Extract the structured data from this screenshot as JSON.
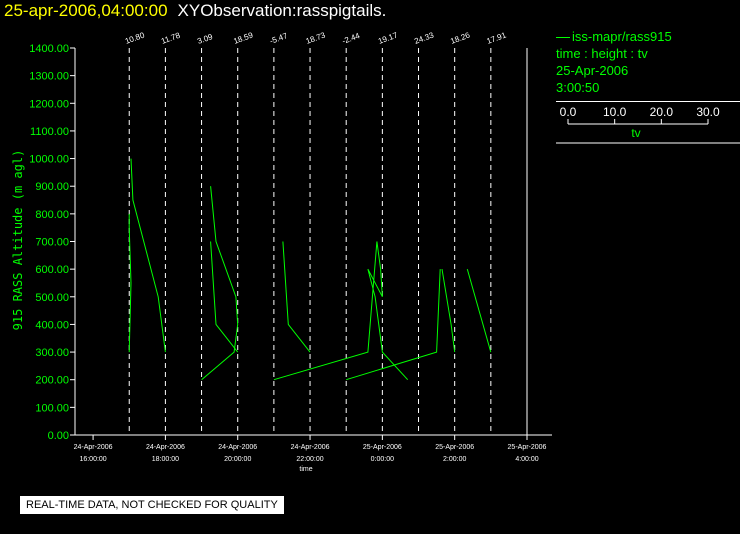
{
  "header": {
    "datetime": "25-apr-2006,04:00:00",
    "title": "XYObservation:rasspigtails."
  },
  "legend": {
    "series_label": "iss-mapr/rass915",
    "fields": "time : height : tv",
    "date": "25-Apr-2006",
    "time": "3:00:50",
    "scale_ticks": [
      "0.0",
      "10.0",
      "20.0",
      "30.0"
    ],
    "scale_label": "tv"
  },
  "disclaimer": "REAL-TIME DATA, NOT CHECKED FOR QUALITY",
  "colors": {
    "axis": "#ffffff",
    "series": "#00ff00",
    "title_date": "#ffff00"
  },
  "chart_data": {
    "type": "line",
    "ylabel": "915 RASS Altitude (m agl)",
    "xlabel": "time",
    "ylim": [
      0,
      1400
    ],
    "yticks": [
      "0.00",
      "100.00",
      "200.00",
      "300.00",
      "400.00",
      "500.00",
      "600.00",
      "700.00",
      "800.00",
      "900.00",
      "1000.00",
      "1100.00",
      "1200.00",
      "1300.00",
      "1400.00"
    ],
    "xticks": [
      {
        "date": "24-Apr-2006",
        "time": "16:00:00",
        "h": -12
      },
      {
        "date": "24-Apr-2006",
        "time": "18:00:00",
        "h": -10
      },
      {
        "date": "24-Apr-2006",
        "time": "20:00:00",
        "h": -8
      },
      {
        "date": "24-Apr-2006",
        "time": "22:00:00",
        "h": -6
      },
      {
        "date": "25-Apr-2006",
        "time": "0:00:00",
        "h": -4
      },
      {
        "date": "25-Apr-2006",
        "time": "2:00:00",
        "h": -2
      },
      {
        "date": "25-Apr-2006",
        "time": "4:00:00",
        "h": 0
      }
    ],
    "profiles": [
      {
        "label": "10.80",
        "h": -11
      },
      {
        "label": "11.78",
        "h": -10
      },
      {
        "label": "3.09",
        "h": -9
      },
      {
        "label": "18.59",
        "h": -8
      },
      {
        "label": "-5.47",
        "h": -7
      },
      {
        "label": "18.73",
        "h": -6
      },
      {
        "label": "-2.44",
        "h": -5
      },
      {
        "label": "19.17",
        "h": -4
      },
      {
        "label": "24.33",
        "h": -3
      },
      {
        "label": "18.26",
        "h": -2
      },
      {
        "label": "17.91",
        "h": -1
      }
    ],
    "series": [
      {
        "points": [
          [
            -11,
            800
          ],
          [
            -11,
            750
          ],
          [
            -10.95,
            550
          ],
          [
            -11,
            300
          ]
        ]
      },
      {
        "points": [
          [
            -10.95,
            1000
          ],
          [
            -10.9,
            850
          ],
          [
            -10.2,
            500
          ],
          [
            -10,
            300
          ]
        ]
      },
      {
        "points": [
          [
            -8.75,
            900
          ],
          [
            -8.6,
            700
          ],
          [
            -8.05,
            500
          ],
          [
            -8,
            400
          ],
          [
            -8.1,
            300
          ],
          [
            -9,
            200
          ]
        ]
      },
      {
        "points": [
          [
            -8.75,
            700
          ],
          [
            -8.6,
            400
          ],
          [
            -8,
            300
          ]
        ]
      },
      {
        "points": [
          [
            -6.75,
            700
          ],
          [
            -6.6,
            400
          ],
          [
            -6,
            300
          ]
        ]
      },
      {
        "points": [
          [
            -7,
            200
          ],
          [
            -4.4,
            300
          ],
          [
            -4.15,
            700
          ],
          [
            -4.05,
            600
          ],
          [
            -4,
            500
          ],
          [
            -4.4,
            600
          ],
          [
            -4.2,
            500
          ],
          [
            -4,
            300
          ],
          [
            -3.3,
            200
          ]
        ]
      },
      {
        "points": [
          [
            -5,
            200
          ],
          [
            -2.5,
            300
          ],
          [
            -2.4,
            600
          ]
        ]
      },
      {
        "points": [
          [
            -2.35,
            600
          ],
          [
            -2.1,
            400
          ],
          [
            -2,
            300
          ]
        ]
      },
      {
        "points": [
          [
            -1.65,
            600
          ],
          [
            -1,
            300
          ]
        ]
      }
    ]
  }
}
